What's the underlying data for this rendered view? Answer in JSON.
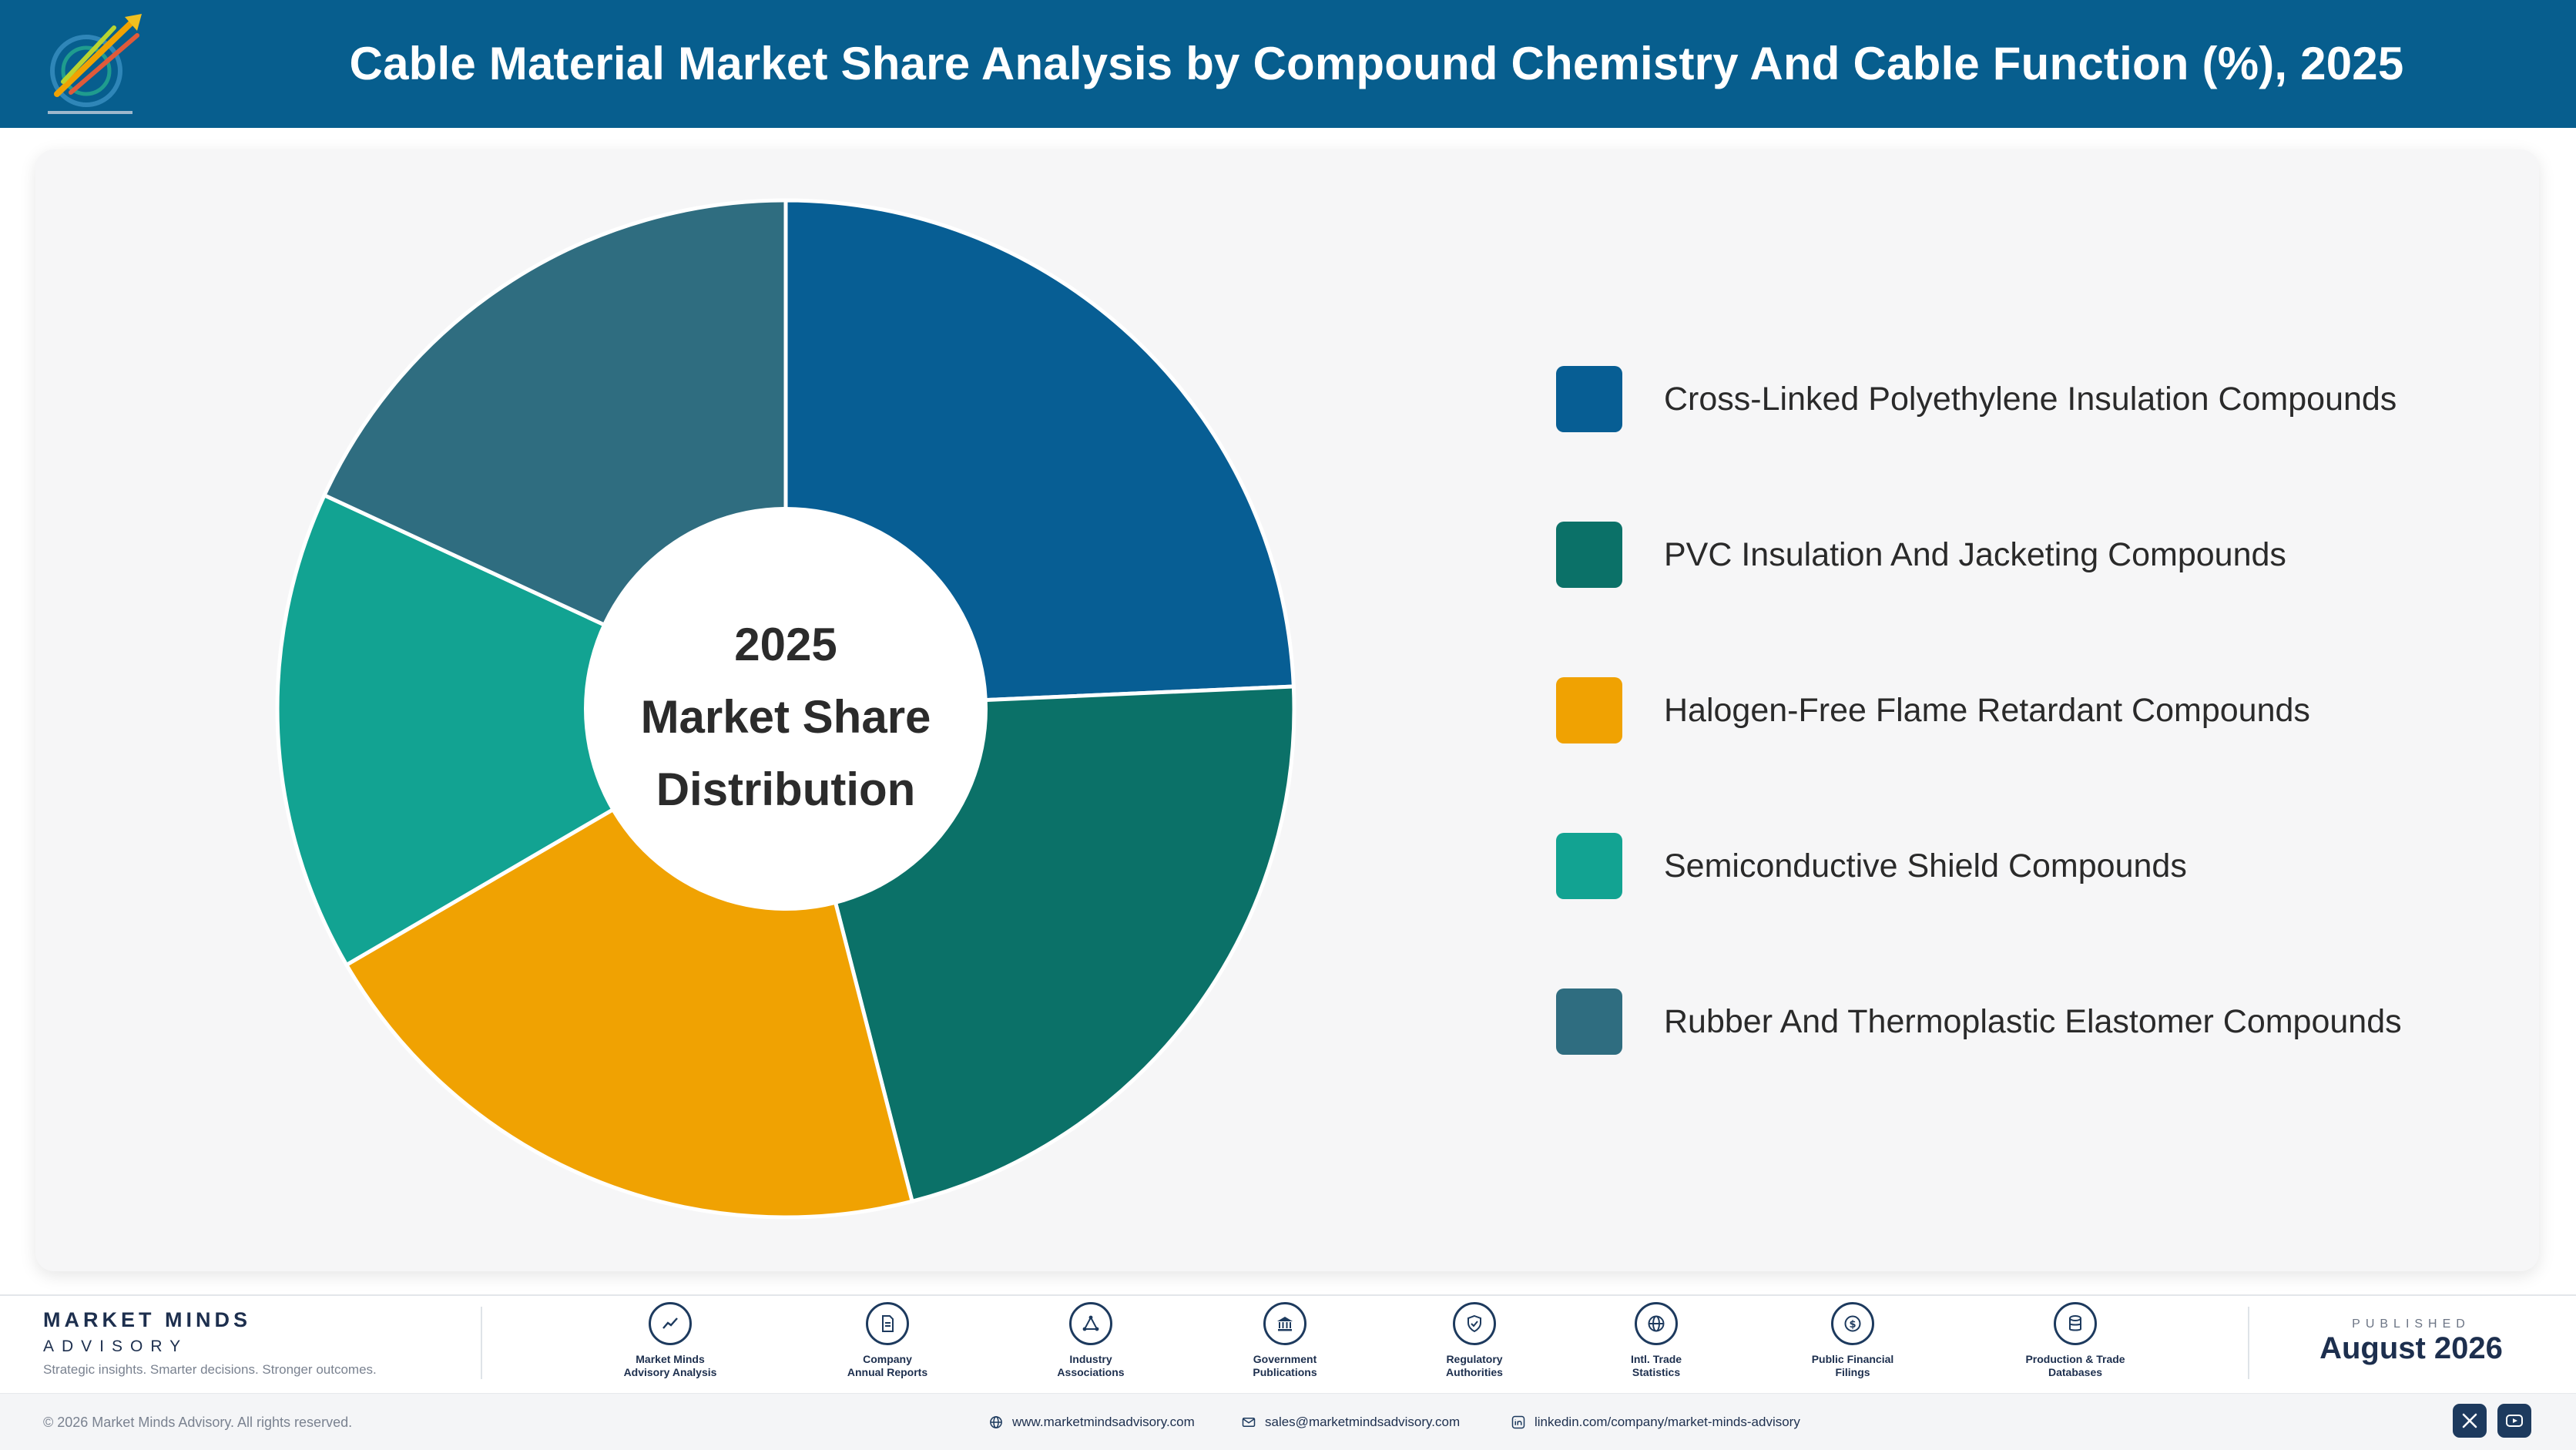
{
  "header": {
    "title": "Cable Material Market Share Analysis by Compound Chemistry And Cable Function (%), 2025"
  },
  "chart_data": {
    "type": "pie",
    "style": "donut",
    "center_label": [
      "2025",
      "Market Share",
      "Distribution"
    ],
    "series": [
      {
        "name": "Cross-Linked Polyethylene Insulation Compounds",
        "value": 24.3,
        "color": "#075e94"
      },
      {
        "name": "PVC Insulation And Jacketing Compounds",
        "value": 21.7,
        "color": "#0b7168"
      },
      {
        "name": "Halogen-Free Flame Retardant Compounds",
        "value": 20.6,
        "color": "#f0a202"
      },
      {
        "name": "Semiconductive Shield Compounds",
        "value": 15.3,
        "color": "#12a392"
      },
      {
        "name": "Rubber And Thermoplastic Elastomer Compounds",
        "value": 18.1,
        "color": "#2f6d80"
      }
    ],
    "legend_position": "right"
  },
  "footer": {
    "brand_name": "MARKET MINDS",
    "brand_sub": "ADVISORY",
    "tagline": "Strategic insights. Smarter decisions. Stronger outcomes.",
    "sources": [
      {
        "icon": "trend-chart-icon",
        "label_line1": "Market Minds",
        "label_line2": "Advisory Analysis"
      },
      {
        "icon": "document-icon",
        "label_line1": "Company",
        "label_line2": "Annual Reports"
      },
      {
        "icon": "network-icon",
        "label_line1": "Industry",
        "label_line2": "Associations"
      },
      {
        "icon": "government-building-icon",
        "label_line1": "Government",
        "label_line2": "Publications"
      },
      {
        "icon": "shield-check-icon",
        "label_line1": "Regulatory",
        "label_line2": "Authorities"
      },
      {
        "icon": "globe-icon",
        "label_line1": "Intl. Trade",
        "label_line2": "Statistics"
      },
      {
        "icon": "dollar-coin-icon",
        "label_line1": "Public Financial",
        "label_line2": "Filings"
      },
      {
        "icon": "database-icon",
        "label_line1": "Production & Trade",
        "label_line2": "Databases"
      }
    ],
    "published_caption": "PUBLISHED",
    "published_date": "August 2026",
    "copyright": "© 2026 Market Minds Advisory. All rights reserved.",
    "website": "www.marketmindsadvisory.com",
    "email": "sales@marketmindsadvisory.com",
    "linkedin": "linkedin.com/company/market-minds-advisory"
  }
}
